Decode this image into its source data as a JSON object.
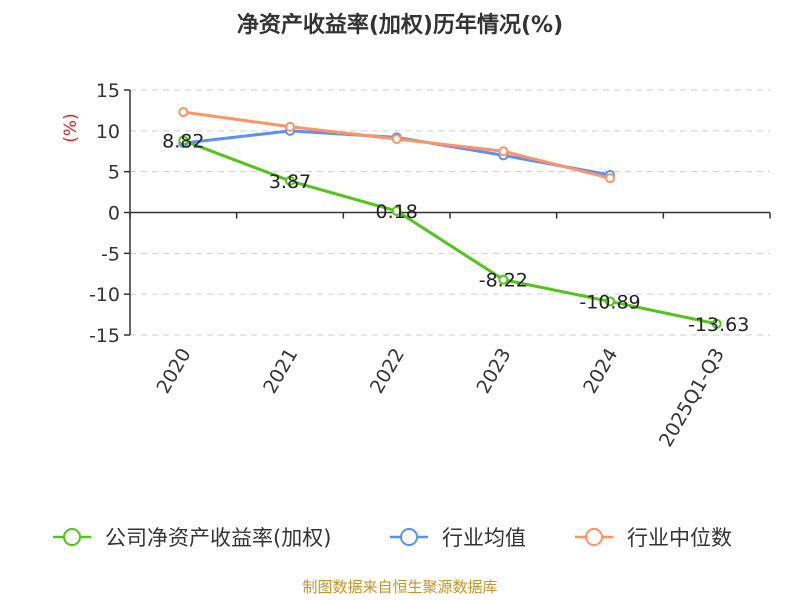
{
  "chart_data": {
    "type": "line",
    "title": "净资产收益率(加权)历年情况(%)",
    "ylabel": "(%)",
    "xlabel": "",
    "categories": [
      "2020",
      "2021",
      "2022",
      "2023",
      "2024",
      "2025Q1-Q3"
    ],
    "yticks": [
      "15",
      "10",
      "5",
      "0",
      "-5",
      "-10",
      "-15"
    ],
    "ylim": [
      -15,
      15
    ],
    "grid": true,
    "legend_position": "bottom",
    "series": [
      {
        "name": "公司净资产收益率(加权)",
        "color": "#52c41a",
        "values": [
          8.82,
          3.87,
          0.18,
          -8.22,
          -10.89,
          -13.63
        ],
        "labels": [
          "8.82",
          "3.87",
          "0.18",
          "-8.22",
          "-10.89",
          "-13.63"
        ]
      },
      {
        "name": "行业均值",
        "color": "#5b8ff9",
        "values": [
          8.5,
          10.0,
          9.2,
          7.0,
          4.6,
          null
        ]
      },
      {
        "name": "行业中位数",
        "color": "#ff9466",
        "values": [
          12.3,
          10.5,
          9.0,
          7.5,
          4.2,
          null
        ]
      }
    ],
    "source": "制图数据来自恒生聚源数据库"
  }
}
